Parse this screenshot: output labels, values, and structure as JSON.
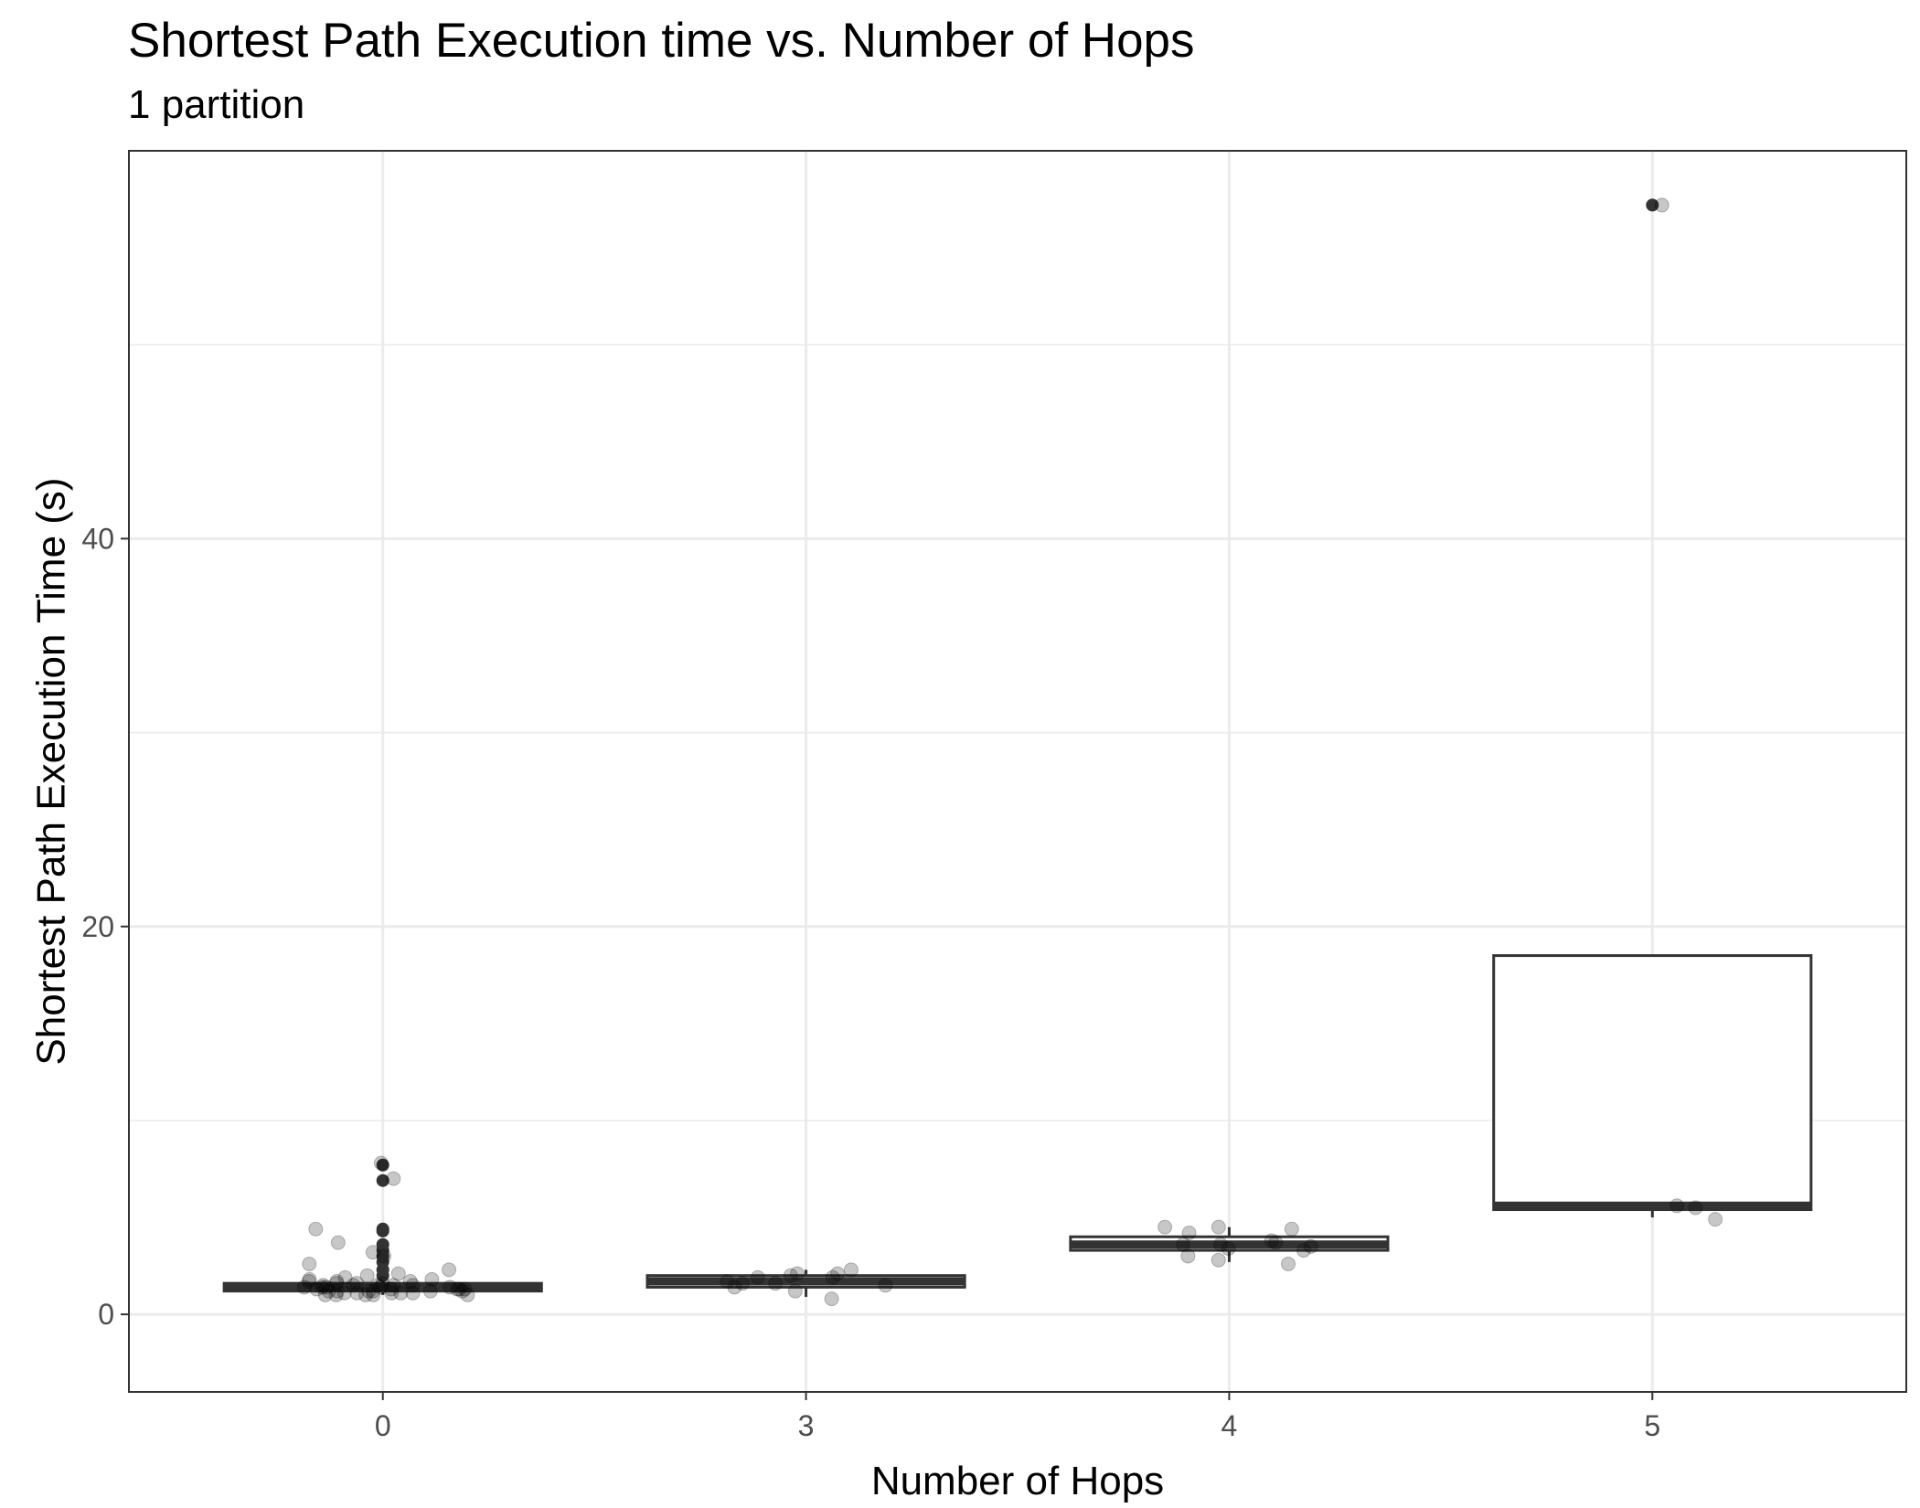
{
  "chart_data": {
    "type": "boxplot",
    "title": "Shortest Path Execution time vs. Number of Hops",
    "subtitle": "1 partition",
    "xlabel": "Number of Hops",
    "ylabel": "Shortest Path Execution Time (s)",
    "categories": [
      "0",
      "3",
      "4",
      "5"
    ],
    "ylim": [
      -4,
      60
    ],
    "y_major_ticks": [
      0,
      20,
      40
    ],
    "y_minor_gridlines": [
      10,
      30,
      50
    ],
    "grid": true,
    "legend": "none",
    "colors": {
      "box_outline": "#333333",
      "median": "#333333",
      "jitter": "#000000",
      "grid": "#ebebeb",
      "panel_border": "#333333"
    },
    "boxes": [
      {
        "category": "0",
        "min": 1.0,
        "q1": 1.2,
        "median": 1.4,
        "q3": 1.6,
        "max": 1.9,
        "outliers": [
          2.0,
          2.3,
          2.7,
          3.0,
          3.3,
          3.6,
          4.3,
          4.4,
          6.9,
          7.7
        ]
      },
      {
        "category": "3",
        "min": 0.9,
        "q1": 1.4,
        "median": 1.7,
        "q3": 2.0,
        "max": 2.3,
        "outliers": []
      },
      {
        "category": "4",
        "min": 2.7,
        "q1": 3.3,
        "median": 3.6,
        "q3": 4.0,
        "max": 4.5,
        "outliers": []
      },
      {
        "category": "5",
        "min": 5.0,
        "q1": 5.4,
        "median": 5.6,
        "q3": 18.5,
        "max": 18.5,
        "outliers": [
          57.2
        ]
      }
    ],
    "jitter_points": [
      {
        "category": "0",
        "values": [
          7.8,
          7.0,
          4.4,
          3.7,
          3.2,
          3.0,
          2.6,
          2.3,
          2.1,
          2.0,
          1.9,
          1.8,
          1.7,
          1.7,
          1.6,
          1.6,
          1.5,
          1.5,
          1.5,
          1.4,
          1.4,
          1.4,
          1.3,
          1.3,
          1.3,
          1.2,
          1.2,
          1.2,
          1.2,
          1.1,
          1.1,
          1.1,
          1.0,
          1.0,
          1.0,
          1.0,
          1.3,
          1.5,
          1.4,
          1.2,
          1.1,
          1.6,
          1.8,
          1.3,
          1.2,
          1.4,
          1.5,
          1.7,
          1.1,
          1.0
        ]
      },
      {
        "category": "3",
        "values": [
          2.3,
          1.9,
          1.6,
          1.9,
          2.1,
          1.4,
          1.7,
          2.0,
          2.1,
          0.8,
          1.5,
          1.6,
          1.2
        ]
      },
      {
        "category": "4",
        "values": [
          3.4,
          2.8,
          2.6,
          3.6,
          4.5,
          3.0,
          3.6,
          3.8,
          4.5,
          4.2,
          3.7,
          4.4,
          3.5,
          3.3
        ]
      },
      {
        "category": "5",
        "values": [
          4.9,
          5.5,
          5.6,
          57.2
        ]
      }
    ]
  }
}
